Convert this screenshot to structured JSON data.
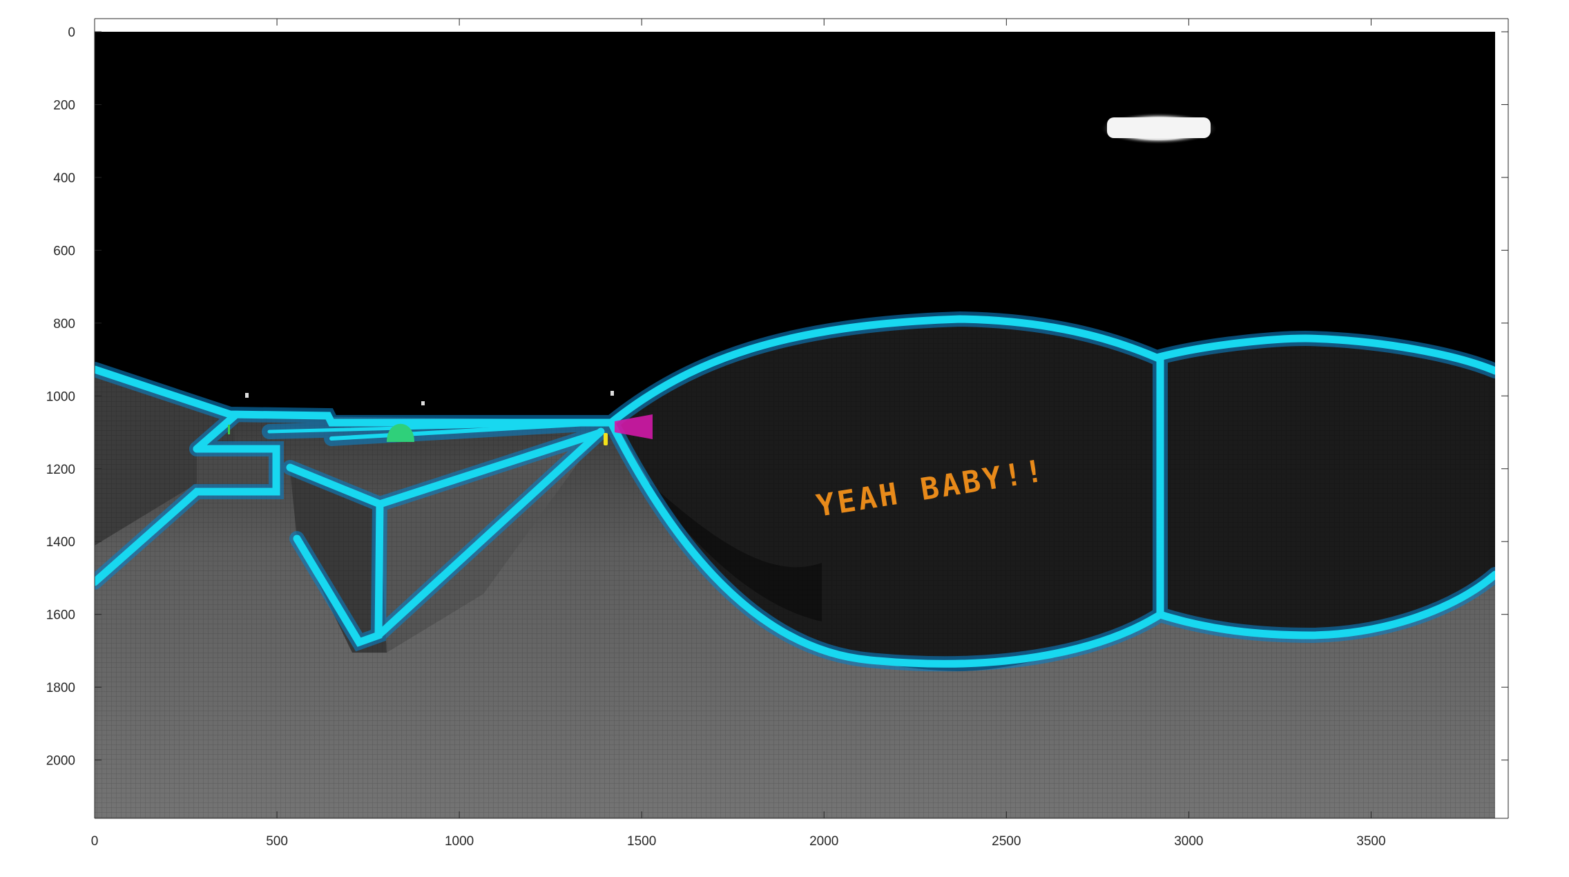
{
  "figure": {
    "image_description_hidden": "",
    "x_axis": {
      "ticks": [
        0,
        500,
        1000,
        1500,
        2000,
        2500,
        3000,
        3500
      ],
      "limits": [
        0,
        3840
      ]
    },
    "y_axis": {
      "ticks": [
        0,
        200,
        400,
        600,
        800,
        1000,
        1200,
        1400,
        1600,
        1800,
        2000
      ],
      "limits": [
        0,
        2160
      ]
    },
    "scene": {
      "graffiti_text": "YEAH BABY!!",
      "colors": {
        "sky": "#000000",
        "floor": "#6b6b6b",
        "wall": "#1c1c1c",
        "neon": "#18d8f0",
        "neon_glow": "#0b7fc4",
        "graffiti": "#e88a1a",
        "magenta_sign": "#d21aa8",
        "green_dome": "#2fd07a",
        "axis": "#262626"
      }
    }
  }
}
